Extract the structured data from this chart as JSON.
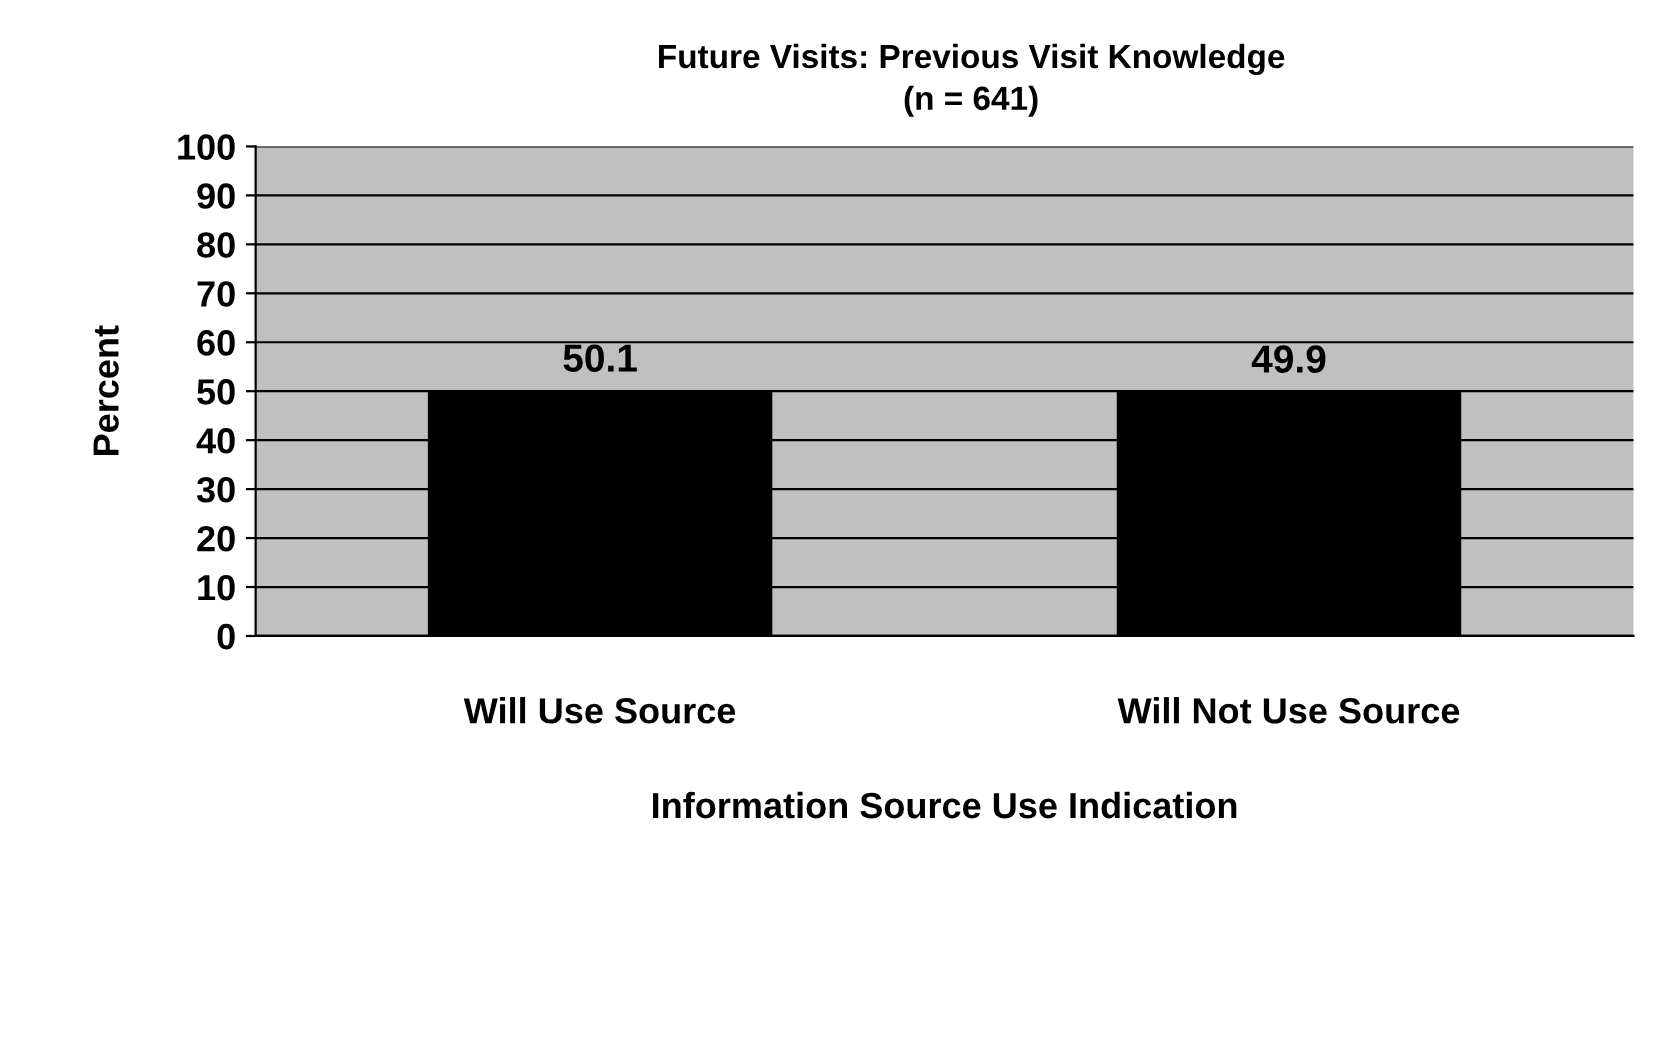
{
  "chart_data": {
    "type": "bar",
    "title": "Future Visits: Previous Visit Knowledge",
    "subtitle": "(n = 641)",
    "xlabel": "Information Source Use Indication",
    "ylabel": "Percent",
    "categories": [
      "Will Use Source",
      "Will Not Use Source"
    ],
    "values": [
      50.1,
      49.9
    ],
    "color": "#000000",
    "data_labels": true,
    "ylim": [
      0,
      100
    ],
    "yticks": [
      0,
      10,
      20,
      30,
      40,
      50,
      60,
      70,
      80,
      90,
      100
    ],
    "grid": "y"
  }
}
